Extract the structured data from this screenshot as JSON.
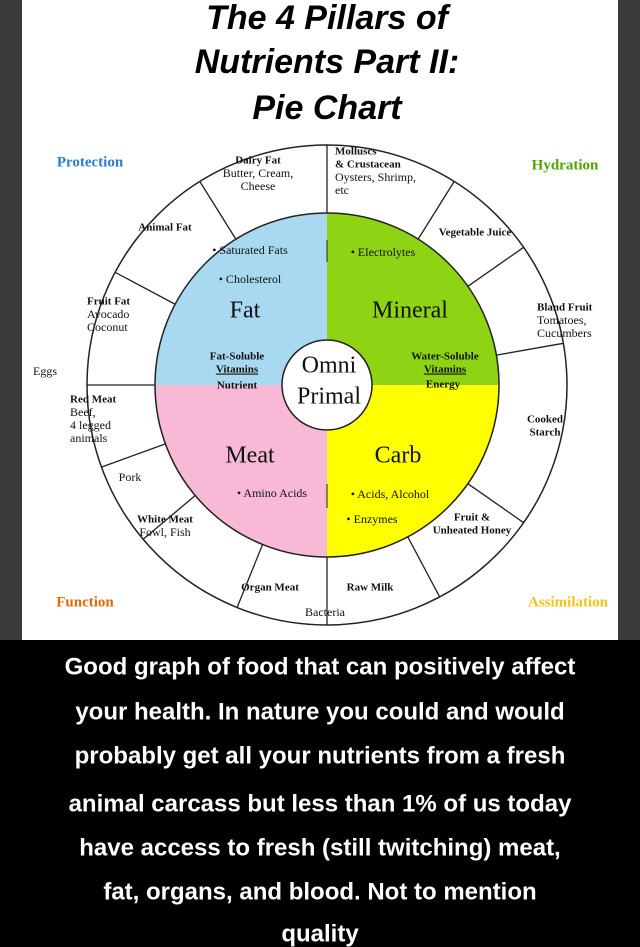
{
  "title": [
    "The 4 Pillars of",
    "Nutrients Part II:",
    "Pie Chart"
  ],
  "corners": {
    "protection": "Protection",
    "hydration": "Hydration",
    "function": "Function",
    "assimilation": "Assimilation"
  },
  "quadrants": {
    "fat": {
      "name": "Fat",
      "bullets": [
        "Saturated Fats",
        "Cholesterol"
      ],
      "vitamins": [
        "Fat-Soluble",
        "Vitamins"
      ],
      "note": "Nutrient"
    },
    "mineral": {
      "name": "Mineral",
      "bullets": [
        "Electrolytes"
      ],
      "vitamins": [
        "Water-Soluble",
        "Vitamins"
      ]
    },
    "meat": {
      "name": "Meat",
      "bullets": [
        "Amino Acids"
      ]
    },
    "carb": {
      "name": "Carb",
      "bullets": [
        "Acids, Alcohol",
        "Enzymes"
      ],
      "note": "Energy"
    }
  },
  "center": [
    "Omni",
    "Primal"
  ],
  "outer": [
    {
      "heading": [
        "Dairy Fat"
      ],
      "text": [
        "Butter, Cream,",
        "Cheese"
      ]
    },
    {
      "heading": [
        "Molluscs",
        "& Crustacean"
      ],
      "text": [
        "Oysters, Shrimp,",
        "etc"
      ]
    },
    {
      "heading": [
        "Animal Fat"
      ],
      "text": []
    },
    {
      "heading": [
        "Vegetable Juice"
      ],
      "text": []
    },
    {
      "heading": [
        "Fruit Fat"
      ],
      "text": [
        "Avocado",
        "Coconut"
      ]
    },
    {
      "heading": [
        "Bland Fruit"
      ],
      "text": [
        "Tomatoes,",
        "Cucumbers"
      ]
    },
    {
      "heading": [],
      "text": [
        "Eggs"
      ]
    },
    {
      "heading": [
        "Red Meat"
      ],
      "text": [
        "Beef,",
        "4 legged",
        "animals"
      ]
    },
    {
      "heading": [
        "Cooked",
        "Starch"
      ],
      "text": []
    },
    {
      "heading": [],
      "text": [
        "Pork"
      ]
    },
    {
      "heading": [
        "White Meat"
      ],
      "text": [
        "Fowl, Fish"
      ]
    },
    {
      "heading": [
        "Fruit &",
        "Unheated Honey"
      ],
      "text": []
    },
    {
      "heading": [
        "Organ Meat"
      ],
      "text": []
    },
    {
      "heading": [
        "Raw Milk"
      ],
      "text": []
    },
    {
      "heading": [],
      "text": [
        "Bacteria"
      ]
    }
  ],
  "caption": [
    "Good graph of food that can positively affect",
    "your health. In nature you could and would",
    "probably get all your nutrients from a fresh",
    "animal carcass but less than 1% of us today",
    "have access to fresh (still twitching) meat,",
    "fat, organs, and blood. Not to mention",
    "quality"
  ]
}
